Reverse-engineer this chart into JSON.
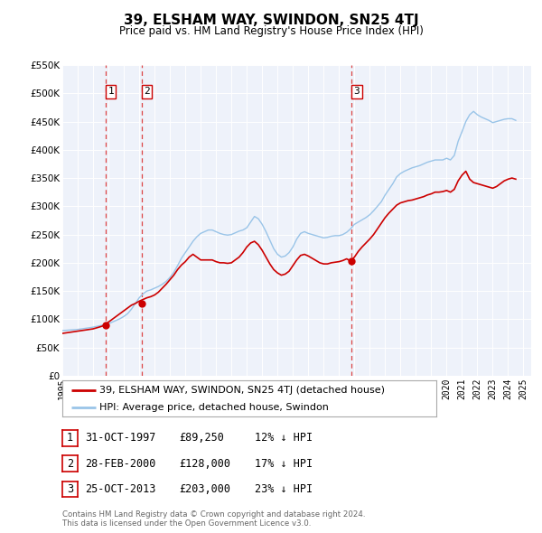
{
  "title": "39, ELSHAM WAY, SWINDON, SN25 4TJ",
  "subtitle": "Price paid vs. HM Land Registry's House Price Index (HPI)",
  "bg_color": "#ffffff",
  "plot_bg_color": "#eef2fa",
  "grid_color": "#ffffff",
  "ylim": [
    0,
    550000
  ],
  "yticks": [
    0,
    50000,
    100000,
    150000,
    200000,
    250000,
    300000,
    350000,
    400000,
    450000,
    500000,
    550000
  ],
  "ytick_labels": [
    "£0",
    "£50K",
    "£100K",
    "£150K",
    "£200K",
    "£250K",
    "£300K",
    "£350K",
    "£400K",
    "£450K",
    "£500K",
    "£550K"
  ],
  "xmin": 1995.0,
  "xmax": 2025.5,
  "sale_color": "#cc0000",
  "hpi_color": "#99c4e8",
  "vline_color": "#dd4444",
  "marker_color": "#cc0000",
  "sale_dates": [
    1997.833,
    2000.167,
    2013.833
  ],
  "sale_prices": [
    89250,
    128000,
    203000
  ],
  "sale_labels": [
    "1",
    "2",
    "3"
  ],
  "legend_sale_label": "39, ELSHAM WAY, SWINDON, SN25 4TJ (detached house)",
  "legend_hpi_label": "HPI: Average price, detached house, Swindon",
  "table_rows": [
    {
      "num": "1",
      "date": "31-OCT-1997",
      "price": "£89,250",
      "pct": "12% ↓ HPI"
    },
    {
      "num": "2",
      "date": "28-FEB-2000",
      "price": "£128,000",
      "pct": "17% ↓ HPI"
    },
    {
      "num": "3",
      "date": "25-OCT-2013",
      "price": "£203,000",
      "pct": "23% ↓ HPI"
    }
  ],
  "footer": "Contains HM Land Registry data © Crown copyright and database right 2024.\nThis data is licensed under the Open Government Licence v3.0.",
  "hpi_data": {
    "years": [
      1995.0,
      1995.25,
      1995.5,
      1995.75,
      1996.0,
      1996.25,
      1996.5,
      1996.75,
      1997.0,
      1997.25,
      1997.5,
      1997.75,
      1998.0,
      1998.25,
      1998.5,
      1998.75,
      1999.0,
      1999.25,
      1999.5,
      1999.75,
      2000.0,
      2000.25,
      2000.5,
      2000.75,
      2001.0,
      2001.25,
      2001.5,
      2001.75,
      2002.0,
      2002.25,
      2002.5,
      2002.75,
      2003.0,
      2003.25,
      2003.5,
      2003.75,
      2004.0,
      2004.25,
      2004.5,
      2004.75,
      2005.0,
      2005.25,
      2005.5,
      2005.75,
      2006.0,
      2006.25,
      2006.5,
      2006.75,
      2007.0,
      2007.25,
      2007.5,
      2007.75,
      2008.0,
      2008.25,
      2008.5,
      2008.75,
      2009.0,
      2009.25,
      2009.5,
      2009.75,
      2010.0,
      2010.25,
      2010.5,
      2010.75,
      2011.0,
      2011.25,
      2011.5,
      2011.75,
      2012.0,
      2012.25,
      2012.5,
      2012.75,
      2013.0,
      2013.25,
      2013.5,
      2013.75,
      2014.0,
      2014.25,
      2014.5,
      2014.75,
      2015.0,
      2015.25,
      2015.5,
      2015.75,
      2016.0,
      2016.25,
      2016.5,
      2016.75,
      2017.0,
      2017.25,
      2017.5,
      2017.75,
      2018.0,
      2018.25,
      2018.5,
      2018.75,
      2019.0,
      2019.25,
      2019.5,
      2019.75,
      2020.0,
      2020.25,
      2020.5,
      2020.75,
      2021.0,
      2021.25,
      2021.5,
      2021.75,
      2022.0,
      2022.25,
      2022.5,
      2022.75,
      2023.0,
      2023.25,
      2023.5,
      2023.75,
      2024.0,
      2024.25,
      2024.5
    ],
    "values": [
      80000,
      80500,
      81000,
      81500,
      82000,
      83000,
      84000,
      85000,
      86000,
      87500,
      89000,
      90500,
      92000,
      95000,
      98000,
      101000,
      105000,
      110000,
      118000,
      128000,
      138000,
      145000,
      150000,
      152000,
      155000,
      158000,
      162000,
      167000,
      174000,
      183000,
      195000,
      208000,
      218000,
      228000,
      238000,
      246000,
      252000,
      255000,
      258000,
      258000,
      255000,
      252000,
      250000,
      249000,
      250000,
      253000,
      256000,
      258000,
      262000,
      272000,
      282000,
      278000,
      268000,
      255000,
      240000,
      225000,
      215000,
      210000,
      212000,
      218000,
      228000,
      242000,
      252000,
      255000,
      252000,
      250000,
      248000,
      246000,
      244000,
      245000,
      247000,
      248000,
      248000,
      250000,
      254000,
      260000,
      268000,
      272000,
      276000,
      280000,
      285000,
      292000,
      300000,
      308000,
      320000,
      330000,
      340000,
      352000,
      358000,
      362000,
      365000,
      368000,
      370000,
      372000,
      375000,
      378000,
      380000,
      382000,
      382000,
      382000,
      385000,
      382000,
      390000,
      415000,
      432000,
      450000,
      462000,
      468000,
      462000,
      458000,
      455000,
      452000,
      448000,
      450000,
      452000,
      454000,
      455000,
      455000,
      452000
    ]
  },
  "sale_line_data": {
    "years": [
      1995.0,
      1995.25,
      1995.5,
      1995.75,
      1996.0,
      1996.25,
      1996.5,
      1996.75,
      1997.0,
      1997.25,
      1997.5,
      1997.75,
      1998.0,
      1998.25,
      1998.5,
      1998.75,
      1999.0,
      1999.25,
      1999.5,
      1999.75,
      2000.0,
      2000.25,
      2000.5,
      2000.75,
      2001.0,
      2001.25,
      2001.5,
      2001.75,
      2002.0,
      2002.25,
      2002.5,
      2002.75,
      2003.0,
      2003.25,
      2003.5,
      2003.75,
      2004.0,
      2004.25,
      2004.5,
      2004.75,
      2005.0,
      2005.25,
      2005.5,
      2005.75,
      2006.0,
      2006.25,
      2006.5,
      2006.75,
      2007.0,
      2007.25,
      2007.5,
      2007.75,
      2008.0,
      2008.25,
      2008.5,
      2008.75,
      2009.0,
      2009.25,
      2009.5,
      2009.75,
      2010.0,
      2010.25,
      2010.5,
      2010.75,
      2011.0,
      2011.25,
      2011.5,
      2011.75,
      2012.0,
      2012.25,
      2012.5,
      2012.75,
      2013.0,
      2013.25,
      2013.5,
      2013.75,
      2014.0,
      2014.25,
      2014.5,
      2014.75,
      2015.0,
      2015.25,
      2015.5,
      2015.75,
      2016.0,
      2016.25,
      2016.5,
      2016.75,
      2017.0,
      2017.25,
      2017.5,
      2017.75,
      2018.0,
      2018.25,
      2018.5,
      2018.75,
      2019.0,
      2019.25,
      2019.5,
      2019.75,
      2020.0,
      2020.25,
      2020.5,
      2020.75,
      2021.0,
      2021.25,
      2021.5,
      2021.75,
      2022.0,
      2022.25,
      2022.5,
      2022.75,
      2023.0,
      2023.25,
      2023.5,
      2023.75,
      2024.0,
      2024.25,
      2024.5
    ],
    "values": [
      75000,
      76000,
      77000,
      78000,
      79000,
      80000,
      81000,
      82000,
      83000,
      85000,
      87000,
      89250,
      95000,
      100000,
      105000,
      110000,
      115000,
      120000,
      125000,
      128000,
      132000,
      135000,
      138000,
      140000,
      143000,
      148000,
      155000,
      162000,
      170000,
      178000,
      188000,
      196000,
      202000,
      210000,
      215000,
      210000,
      205000,
      205000,
      205000,
      205000,
      202000,
      200000,
      200000,
      199000,
      200000,
      205000,
      210000,
      218000,
      228000,
      235000,
      238000,
      232000,
      222000,
      210000,
      198000,
      188000,
      182000,
      178000,
      180000,
      185000,
      195000,
      205000,
      213000,
      215000,
      212000,
      208000,
      204000,
      200000,
      198000,
      198000,
      200000,
      201000,
      202000,
      204000,
      207000,
      203000,
      210000,
      220000,
      228000,
      235000,
      242000,
      250000,
      260000,
      270000,
      280000,
      288000,
      295000,
      302000,
      306000,
      308000,
      310000,
      311000,
      313000,
      315000,
      317000,
      320000,
      322000,
      325000,
      325000,
      326000,
      328000,
      325000,
      330000,
      345000,
      355000,
      362000,
      348000,
      342000,
      340000,
      338000,
      336000,
      334000,
      332000,
      335000,
      340000,
      345000,
      348000,
      350000,
      348000
    ]
  }
}
